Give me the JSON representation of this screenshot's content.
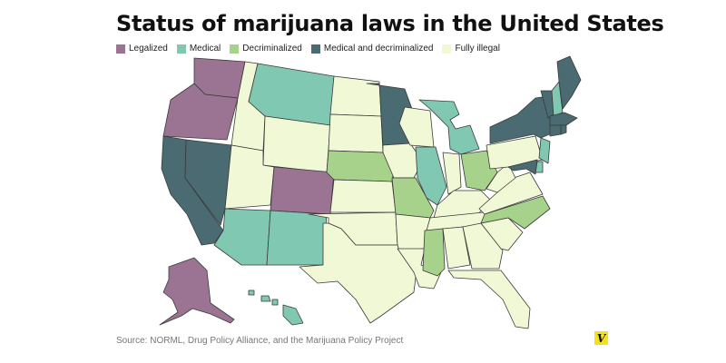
{
  "title": "Status of marijuana laws in the United States",
  "legend": [
    {
      "label": "Legalized",
      "color": "#9b7393"
    },
    {
      "label": "Medical",
      "color": "#80c8b2"
    },
    {
      "label": "Decriminalized",
      "color": "#a6d28c"
    },
    {
      "label": "Medical and decriminalized",
      "color": "#4a6b72"
    },
    {
      "label": "Fully illegal",
      "color": "#f1f8d6"
    }
  ],
  "source": "Source: NORML, Drug Policy Alliance, and the Marijuana Policy Project",
  "logo_text": "V",
  "states": {
    "WA": "Legalized",
    "OR": "Legalized",
    "CO": "Legalized",
    "AK": "Legalized",
    "CA": "Medical and decriminalized",
    "NV": "Medical and decriminalized",
    "MN": "Medical and decriminalized",
    "NY": "Medical and decriminalized",
    "VT": "Medical and decriminalized",
    "ME": "Medical and decriminalized",
    "MA": "Medical and decriminalized",
    "CT": "Medical and decriminalized",
    "RI": "Medical and decriminalized",
    "MD": "Medical and decriminalized",
    "MT": "Medical",
    "AZ": "Medical",
    "NM": "Medical",
    "IL": "Medical",
    "MI": "Medical",
    "NH": "Medical",
    "NJ": "Medical",
    "DE": "Medical",
    "HI": "Medical",
    "NE": "Decriminalized",
    "MO": "Decriminalized",
    "MS": "Decriminalized",
    "OH": "Decriminalized",
    "NC": "Decriminalized",
    "ID": "Fully illegal",
    "WY": "Fully illegal",
    "UT": "Fully illegal",
    "ND": "Fully illegal",
    "SD": "Fully illegal",
    "KS": "Fully illegal",
    "OK": "Fully illegal",
    "TX": "Fully illegal",
    "IA": "Fully illegal",
    "AR": "Fully illegal",
    "LA": "Fully illegal",
    "WI": "Fully illegal",
    "IN": "Fully illegal",
    "KY": "Fully illegal",
    "TN": "Fully illegal",
    "AL": "Fully illegal",
    "GA": "Fully illegal",
    "FL": "Fully illegal",
    "SC": "Fully illegal",
    "VA": "Fully illegal",
    "WV": "Fully illegal",
    "PA": "Fully illegal"
  }
}
